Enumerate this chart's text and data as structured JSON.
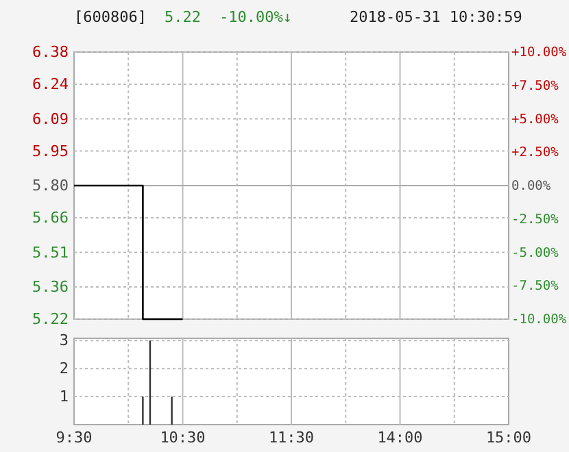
{
  "chart_data": [
    {
      "type": "step",
      "title": "[600806]",
      "annotations": [
        "5.22",
        "-10.00%↓",
        "2018-05-31 10:30:59"
      ],
      "categories": [
        null,
        null,
        null,
        null,
        null,
        null,
        null,
        null,
        null,
        null,
        null,
        null,
        null,
        null,
        null,
        null,
        null,
        null,
        null,
        null,
        null,
        null,
        null,
        null,
        null,
        null,
        null,
        null,
        null,
        null,
        null,
        null,
        null,
        null,
        null,
        null,
        null,
        null,
        null,
        null,
        null,
        null,
        null,
        null,
        null,
        null,
        null,
        null,
        null,
        null,
        null,
        null,
        null,
        null,
        null,
        null,
        null,
        null,
        null,
        null,
        null,
        null,
        null,
        null,
        null,
        null,
        null,
        null,
        null,
        null,
        null,
        null,
        null,
        null,
        null,
        null,
        null,
        null,
        null,
        null,
        null,
        null,
        null,
        null,
        null,
        null,
        null,
        null,
        null,
        null,
        null,
        null,
        null,
        null,
        null,
        null,
        null,
        null,
        null,
        null,
        null,
        null,
        null,
        null,
        null,
        null,
        null,
        null,
        null,
        null,
        null,
        null,
        null,
        null,
        null,
        null,
        null,
        null,
        null,
        null,
        null
      ],
      "series": [
        {
          "color": "#000000",
          "values": [
            5.8,
            5.8,
            5.8,
            5.8,
            5.8,
            5.8,
            5.8,
            5.8,
            5.8,
            5.8,
            5.8,
            5.8,
            5.8,
            5.8,
            5.8,
            5.8,
            5.8,
            5.8,
            5.8,
            5.22,
            5.22,
            5.22,
            5.22,
            5.22,
            5.22,
            5.22,
            5.22,
            5.22,
            5.22,
            5.22,
            5.22,
            null,
            null,
            null,
            null,
            null,
            null,
            null,
            null,
            null,
            null,
            null,
            null,
            null,
            null,
            null,
            null,
            null,
            null,
            null,
            null,
            null,
            null,
            null,
            null,
            null,
            null,
            null,
            null,
            null,
            null,
            null,
            null,
            null,
            null,
            null,
            null,
            null,
            null,
            null,
            null,
            null,
            null,
            null,
            null,
            null,
            null,
            null,
            null,
            null,
            null,
            null,
            null,
            null,
            null,
            null,
            null,
            null,
            null,
            null,
            null,
            null,
            null,
            null,
            null,
            null,
            null,
            null,
            null,
            null,
            null,
            null,
            null,
            null,
            null,
            null,
            null,
            null,
            null,
            null,
            null,
            null,
            null,
            null,
            null,
            null,
            null,
            null,
            null,
            null,
            null
          ]
        }
      ],
      "ylim": [
        5.22,
        6.38
      ],
      "yticks": [
        5.22,
        5.36,
        5.51,
        5.66,
        {
          "value": 5.8,
          "label": "5.80"
        },
        5.95,
        6.09,
        6.24,
        6.38
      ],
      "y2lim": [
        -10,
        10
      ],
      "y2ticks": [
        {
          "value": -10,
          "label": "-10.00%"
        },
        {
          "value": -7.5,
          "label": "-7.50%"
        },
        {
          "value": -5,
          "label": "-5.00%"
        },
        {
          "value": -2.5,
          "label": "-2.50%"
        },
        {
          "value": 0,
          "label": "0.00%"
        },
        {
          "value": 2.5,
          "label": "+2.50%"
        },
        {
          "value": 5,
          "label": "+5.00%"
        },
        {
          "value": 7.5,
          "label": "+7.50%"
        },
        {
          "value": 10,
          "label": "+10.00%"
        }
      ],
      "ref_lines": [
        {
          "axis": "y",
          "value": 5.8
        }
      ],
      "grid": true,
      "tick_labels": "y",
      "line_style": "solid"
    },
    {
      "type": "bar",
      "categories": [
        "9:30",
        null,
        null,
        null,
        null,
        null,
        null,
        null,
        null,
        null,
        null,
        null,
        null,
        null,
        null,
        null,
        null,
        null,
        null,
        null,
        null,
        null,
        null,
        null,
        null,
        null,
        null,
        null,
        null,
        null,
        "10:30",
        null,
        null,
        null,
        null,
        null,
        null,
        null,
        null,
        null,
        null,
        null,
        null,
        null,
        null,
        null,
        null,
        null,
        null,
        null,
        null,
        null,
        null,
        null,
        null,
        null,
        null,
        null,
        null,
        null,
        "11:30",
        null,
        null,
        null,
        null,
        null,
        null,
        null,
        null,
        null,
        null,
        null,
        null,
        null,
        null,
        null,
        null,
        null,
        null,
        null,
        null,
        null,
        null,
        null,
        null,
        null,
        null,
        null,
        null,
        null,
        "14:00",
        null,
        null,
        null,
        null,
        null,
        null,
        null,
        null,
        null,
        null,
        null,
        null,
        null,
        null,
        null,
        null,
        null,
        null,
        null,
        null,
        null,
        null,
        null,
        null,
        null,
        null,
        null,
        null,
        null,
        "15:00"
      ],
      "series": [
        {
          "color": "#333333",
          "values": [
            null,
            null,
            null,
            null,
            null,
            null,
            null,
            null,
            null,
            null,
            null,
            null,
            null,
            null,
            null,
            null,
            null,
            null,
            null,
            1,
            null,
            3,
            null,
            null,
            null,
            null,
            null,
            1,
            null,
            null,
            null,
            null,
            null,
            null,
            null,
            null,
            null,
            null,
            null,
            null,
            null,
            null,
            null,
            null,
            null,
            null,
            null,
            null,
            null,
            null,
            null,
            null,
            null,
            null,
            null,
            null,
            null,
            null,
            null,
            null,
            null,
            null,
            null,
            null,
            null,
            null,
            null,
            null,
            null,
            null,
            null,
            null,
            null,
            null,
            null,
            null,
            null,
            null,
            null,
            null,
            null,
            null,
            null,
            null,
            null,
            null,
            null,
            null,
            null,
            null,
            null,
            null,
            null,
            null,
            null,
            null,
            null,
            null,
            null,
            null,
            null,
            null,
            null,
            null,
            null,
            null,
            null,
            null,
            null,
            null,
            null,
            null,
            null,
            null,
            null,
            null,
            null,
            null,
            null,
            null,
            null
          ]
        }
      ],
      "ylim": [
        0,
        3.08
      ],
      "yticks": [
        1,
        2,
        3
      ],
      "grid": true
    }
  ]
}
